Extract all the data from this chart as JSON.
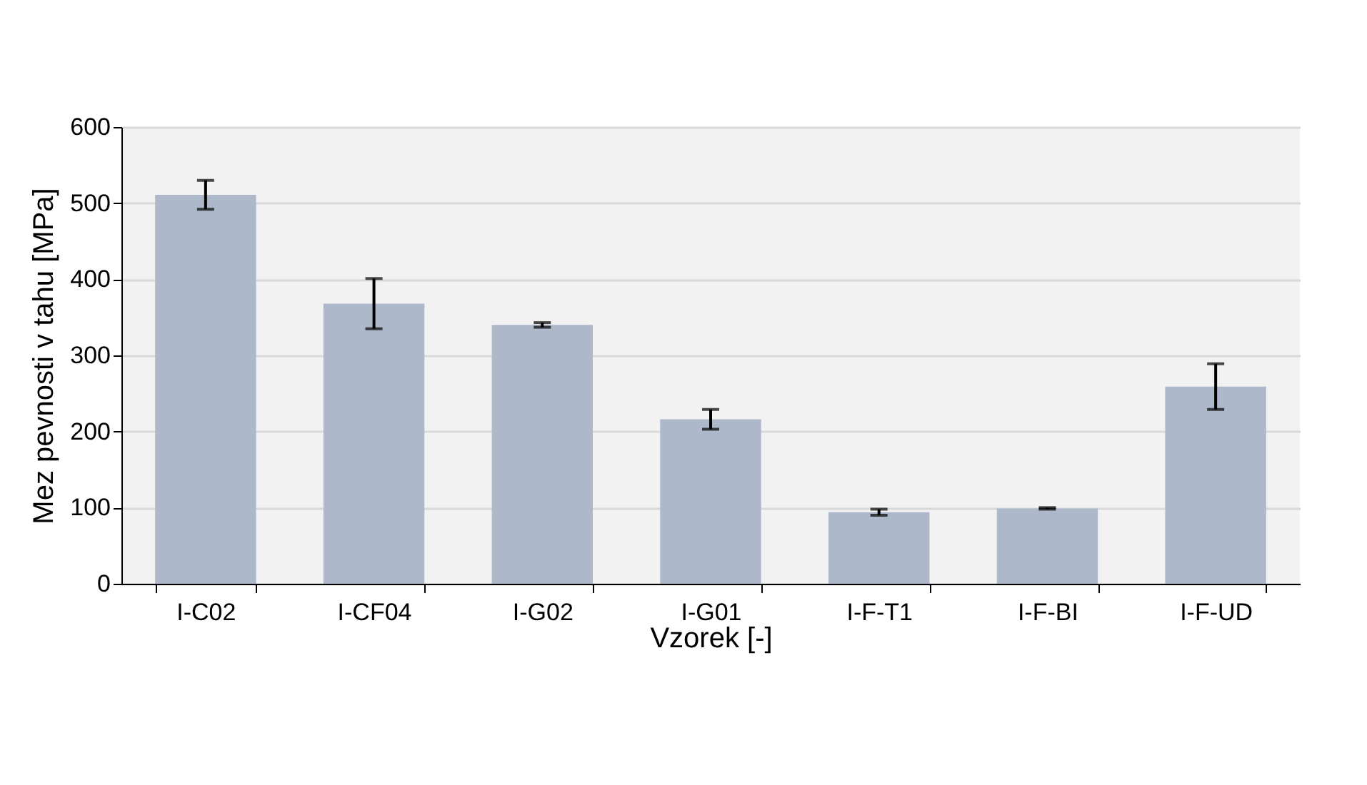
{
  "chart_data": {
    "type": "bar",
    "xlabel": "Vzorek [-]",
    "ylabel": "Mez pevnosti v tahu [MPa]",
    "categories": [
      "I-C02",
      "I-CF04",
      "I-G02",
      "I-G01",
      "I-F-T1",
      "I-F-BI",
      "I-F-UD"
    ],
    "values": [
      511,
      368,
      340,
      216,
      94,
      99,
      259
    ],
    "errors": [
      19,
      33,
      3,
      13,
      4,
      1,
      30
    ],
    "color": "#adb9ca",
    "ylim": [
      0,
      600
    ],
    "yticks": [
      0,
      100,
      200,
      300,
      400,
      500,
      600
    ],
    "grid": "y"
  }
}
